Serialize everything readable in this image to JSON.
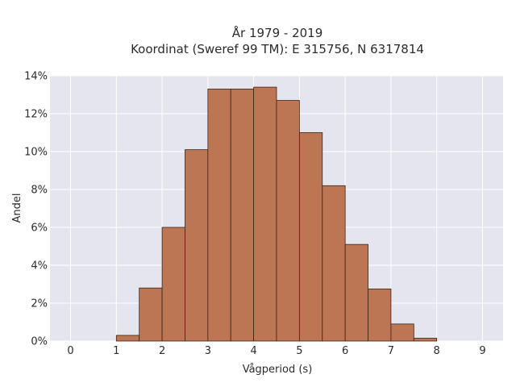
{
  "chart_data": {
    "type": "bar",
    "title_line1": "År 1979 - 2019",
    "title_line2": "Koordinat (Sweref 99 TM): E 315756, N 6317814",
    "xlabel": "Vågperiod (s)",
    "ylabel": "Andel",
    "bin_width": 0.5,
    "bin_starts": [
      0,
      0.5,
      1,
      1.5,
      2,
      2.5,
      3,
      3.5,
      4,
      4.5,
      5,
      5.5,
      6,
      6.5,
      7,
      7.5,
      8,
      8.5
    ],
    "values": [
      0.0,
      0.0,
      0.3,
      2.8,
      6.0,
      10.1,
      13.3,
      13.3,
      13.4,
      12.7,
      11.0,
      8.2,
      5.1,
      2.75,
      0.9,
      0.15,
      0.0,
      0.0
    ],
    "xlim": [
      -0.45,
      9.45
    ],
    "ylim": [
      0,
      14
    ],
    "x_ticks": [
      0,
      1,
      2,
      3,
      4,
      5,
      6,
      7,
      8,
      9
    ],
    "x_tick_labels": [
      "0",
      "1",
      "2",
      "3",
      "4",
      "5",
      "6",
      "7",
      "8",
      "9"
    ],
    "y_ticks": [
      0,
      2,
      4,
      6,
      8,
      10,
      12,
      14
    ],
    "y_tick_labels": [
      "0%",
      "2%",
      "4%",
      "6%",
      "8%",
      "10%",
      "12%",
      "14%"
    ],
    "grid": true,
    "bar_color": "#bd7654",
    "bar_edge_color": "#3a2418",
    "plot_bg": "#e5e5ef"
  }
}
